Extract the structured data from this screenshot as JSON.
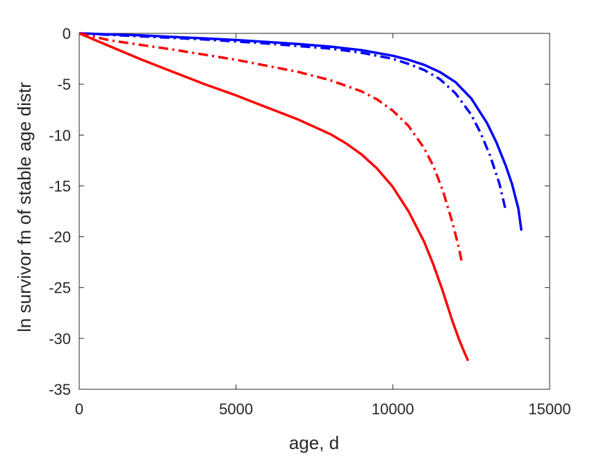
{
  "chart_data": {
    "type": "line",
    "title": "",
    "xlabel": "age, d",
    "ylabel": "ln survivor fn of stable age distr",
    "xlim": [
      0,
      15000
    ],
    "ylim": [
      -35,
      0
    ],
    "xticks": [
      0,
      5000,
      10000,
      15000
    ],
    "yticks": [
      0,
      -5,
      -10,
      -15,
      -20,
      -25,
      -30,
      -35
    ],
    "grid": false,
    "legend": "none",
    "series": [
      {
        "color": "#0000ff",
        "style": "solid",
        "x": [
          0,
          1000,
          2000,
          3000,
          4000,
          5000,
          6000,
          7000,
          8000,
          9000,
          10000,
          10500,
          11000,
          11500,
          12000,
          12500,
          13000,
          13300,
          13600,
          13800,
          14000,
          14100
        ],
        "y": [
          0,
          -0.1,
          -0.2,
          -0.35,
          -0.5,
          -0.65,
          -0.85,
          -1.05,
          -1.3,
          -1.65,
          -2.2,
          -2.6,
          -3.1,
          -3.8,
          -4.8,
          -6.4,
          -8.8,
          -10.7,
          -13.0,
          -14.8,
          -17.2,
          -19.4
        ]
      },
      {
        "color": "#0000ff",
        "style": "dashdot",
        "x": [
          0,
          1000,
          2000,
          3000,
          4000,
          5000,
          6000,
          7000,
          8000,
          9000,
          10000,
          10500,
          11000,
          11500,
          12000,
          12500,
          12800,
          13100,
          13400,
          13600
        ],
        "y": [
          0,
          -0.15,
          -0.3,
          -0.45,
          -0.6,
          -0.8,
          -1.0,
          -1.25,
          -1.5,
          -1.9,
          -2.5,
          -3.0,
          -3.6,
          -4.5,
          -5.9,
          -8.0,
          -9.8,
          -12.0,
          -14.8,
          -17.4
        ]
      },
      {
        "color": "#ff0000",
        "style": "dashdot",
        "x": [
          0,
          1000,
          2000,
          3000,
          4000,
          5000,
          6000,
          7000,
          8000,
          9000,
          9500,
          10000,
          10500,
          11000,
          11300,
          11600,
          11900,
          12100,
          12200
        ],
        "y": [
          0,
          -0.7,
          -1.15,
          -1.6,
          -2.1,
          -2.6,
          -3.2,
          -3.8,
          -4.6,
          -5.7,
          -6.5,
          -7.6,
          -9.1,
          -11.3,
          -13.1,
          -15.5,
          -18.6,
          -21.0,
          -22.5
        ]
      },
      {
        "color": "#ff0000",
        "style": "solid",
        "x": [
          0,
          1000,
          2000,
          3000,
          4000,
          5000,
          6000,
          7000,
          8000,
          8500,
          9000,
          9500,
          10000,
          10500,
          11000,
          11300,
          11600,
          11900,
          12100,
          12300,
          12400
        ],
        "y": [
          0,
          -1.3,
          -2.6,
          -3.8,
          -5.0,
          -6.1,
          -7.3,
          -8.5,
          -9.9,
          -10.8,
          -11.9,
          -13.3,
          -15.1,
          -17.5,
          -20.5,
          -22.8,
          -25.4,
          -28.3,
          -30.0,
          -31.5,
          -32.2
        ]
      }
    ]
  }
}
